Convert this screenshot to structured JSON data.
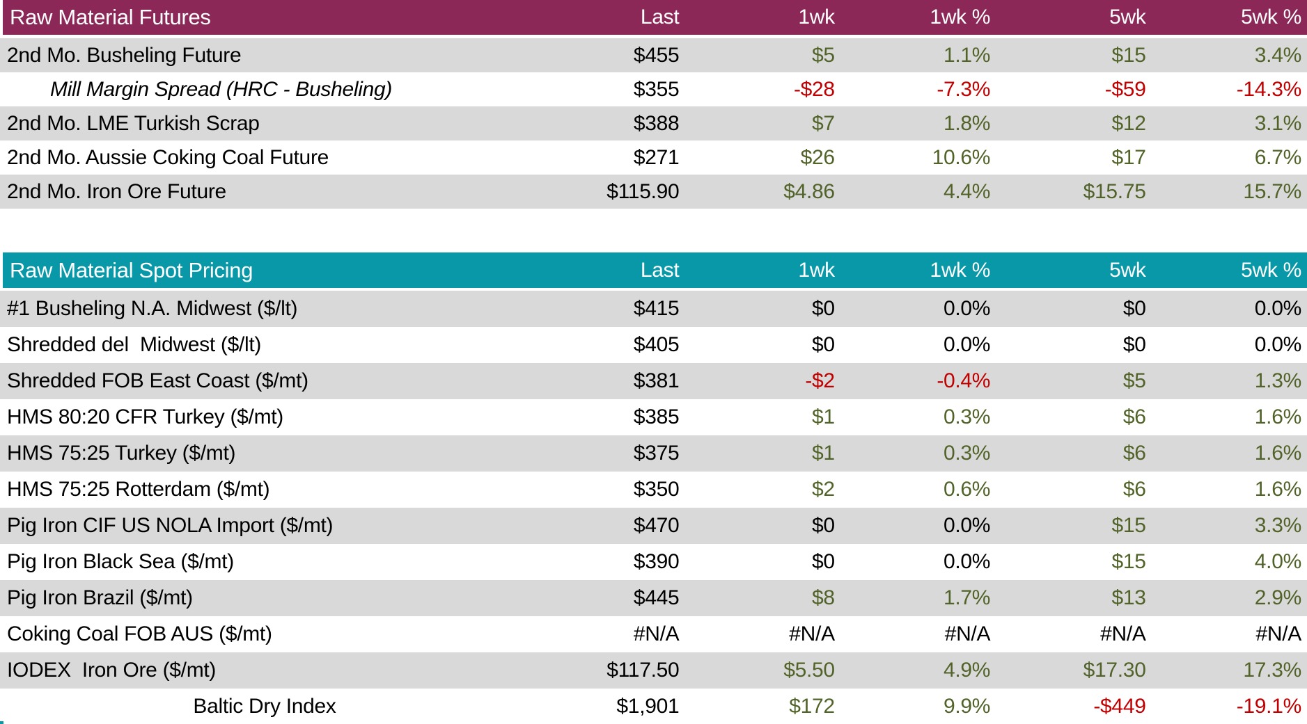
{
  "colors": {
    "futures_header_bg": "#8C2858",
    "spot_header_bg": "#0998A8",
    "stripe_gray": "#D9D9D9",
    "positive_green": "#52632A",
    "negative_red": "#C00000",
    "neutral_black": "#000000",
    "header_text": "#FFFFFF"
  },
  "chart_data": [
    {
      "type": "table",
      "title": "Raw Material Futures",
      "header_color": "#8C2858",
      "columns": [
        "Last",
        "1wk",
        "1wk %",
        "5wk",
        "5wk %"
      ],
      "rows": [
        {
          "label": "2nd Mo. Busheling Future",
          "cells": [
            {
              "t": "$455",
              "c": "flat"
            },
            {
              "t": "$5",
              "c": "pos"
            },
            {
              "t": "1.1%",
              "c": "pos"
            },
            {
              "t": "$15",
              "c": "pos"
            },
            {
              "t": "3.4%",
              "c": "pos"
            }
          ]
        },
        {
          "label": "Mill Margin Spread (HRC - Busheling)",
          "em": true,
          "cells": [
            {
              "t": "$355",
              "c": "flat"
            },
            {
              "t": "-$28",
              "c": "neg"
            },
            {
              "t": "-7.3%",
              "c": "neg"
            },
            {
              "t": "-$59",
              "c": "neg"
            },
            {
              "t": "-14.3%",
              "c": "neg"
            }
          ]
        },
        {
          "label": "2nd Mo. LME Turkish Scrap",
          "cells": [
            {
              "t": "$388",
              "c": "flat"
            },
            {
              "t": "$7",
              "c": "pos"
            },
            {
              "t": "1.8%",
              "c": "pos"
            },
            {
              "t": "$12",
              "c": "pos"
            },
            {
              "t": "3.1%",
              "c": "pos"
            }
          ]
        },
        {
          "label": "2nd Mo. Aussie Coking Coal Future",
          "cells": [
            {
              "t": "$271",
              "c": "flat"
            },
            {
              "t": "$26",
              "c": "pos"
            },
            {
              "t": "10.6%",
              "c": "pos"
            },
            {
              "t": "$17",
              "c": "pos"
            },
            {
              "t": "6.7%",
              "c": "pos"
            }
          ]
        },
        {
          "label": "2nd Mo. Iron Ore Future",
          "cells": [
            {
              "t": "$115.90",
              "c": "flat"
            },
            {
              "t": "$4.86",
              "c": "pos"
            },
            {
              "t": "4.4%",
              "c": "pos"
            },
            {
              "t": "$15.75",
              "c": "pos"
            },
            {
              "t": "15.7%",
              "c": "pos"
            }
          ]
        }
      ]
    },
    {
      "type": "table",
      "title": "Raw Material Spot Pricing",
      "header_color": "#0998A8",
      "columns": [
        "Last",
        "1wk",
        "1wk %",
        "5wk",
        "5wk %"
      ],
      "rows": [
        {
          "label": "#1 Busheling N.A. Midwest ($/lt)",
          "cells": [
            {
              "t": "$415",
              "c": "flat"
            },
            {
              "t": "$0",
              "c": "flat"
            },
            {
              "t": "0.0%",
              "c": "flat"
            },
            {
              "t": "$0",
              "c": "flat"
            },
            {
              "t": "0.0%",
              "c": "flat"
            }
          ]
        },
        {
          "label": "Shredded del  Midwest ($/lt)",
          "cells": [
            {
              "t": "$405",
              "c": "flat"
            },
            {
              "t": "$0",
              "c": "flat"
            },
            {
              "t": "0.0%",
              "c": "flat"
            },
            {
              "t": "$0",
              "c": "flat"
            },
            {
              "t": "0.0%",
              "c": "flat"
            }
          ]
        },
        {
          "label": "Shredded FOB East Coast ($/mt)",
          "cells": [
            {
              "t": "$381",
              "c": "flat"
            },
            {
              "t": "-$2",
              "c": "neg"
            },
            {
              "t": "-0.4%",
              "c": "neg"
            },
            {
              "t": "$5",
              "c": "pos"
            },
            {
              "t": "1.3%",
              "c": "pos"
            }
          ]
        },
        {
          "label": "HMS 80:20 CFR Turkey ($/mt)",
          "cells": [
            {
              "t": "$385",
              "c": "flat"
            },
            {
              "t": "$1",
              "c": "pos"
            },
            {
              "t": "0.3%",
              "c": "pos"
            },
            {
              "t": "$6",
              "c": "pos"
            },
            {
              "t": "1.6%",
              "c": "pos"
            }
          ]
        },
        {
          "label": "HMS 75:25 Turkey ($/mt)",
          "cells": [
            {
              "t": "$375",
              "c": "flat"
            },
            {
              "t": "$1",
              "c": "pos"
            },
            {
              "t": "0.3%",
              "c": "pos"
            },
            {
              "t": "$6",
              "c": "pos"
            },
            {
              "t": "1.6%",
              "c": "pos"
            }
          ]
        },
        {
          "label": "HMS 75:25 Rotterdam ($/mt)",
          "cells": [
            {
              "t": "$350",
              "c": "flat"
            },
            {
              "t": "$2",
              "c": "pos"
            },
            {
              "t": "0.6%",
              "c": "pos"
            },
            {
              "t": "$6",
              "c": "pos"
            },
            {
              "t": "1.6%",
              "c": "pos"
            }
          ]
        },
        {
          "label": "Pig Iron CIF US NOLA Import ($/mt)",
          "cells": [
            {
              "t": "$470",
              "c": "flat"
            },
            {
              "t": "$0",
              "c": "flat"
            },
            {
              "t": "0.0%",
              "c": "flat"
            },
            {
              "t": "$15",
              "c": "pos"
            },
            {
              "t": "3.3%",
              "c": "pos"
            }
          ]
        },
        {
          "label": "Pig Iron Black Sea ($/mt)",
          "cells": [
            {
              "t": "$390",
              "c": "flat"
            },
            {
              "t": "$0",
              "c": "flat"
            },
            {
              "t": "0.0%",
              "c": "flat"
            },
            {
              "t": "$15",
              "c": "pos"
            },
            {
              "t": "4.0%",
              "c": "pos"
            }
          ]
        },
        {
          "label": "Pig Iron Brazil ($/mt)",
          "cells": [
            {
              "t": "$445",
              "c": "flat"
            },
            {
              "t": "$8",
              "c": "pos"
            },
            {
              "t": "1.7%",
              "c": "pos"
            },
            {
              "t": "$13",
              "c": "pos"
            },
            {
              "t": "2.9%",
              "c": "pos"
            }
          ]
        },
        {
          "label": "Coking Coal FOB AUS ($/mt)",
          "cells": [
            {
              "t": "#N/A",
              "c": "flat"
            },
            {
              "t": "#N/A",
              "c": "flat"
            },
            {
              "t": "#N/A",
              "c": "flat"
            },
            {
              "t": "#N/A",
              "c": "flat"
            },
            {
              "t": "#N/A",
              "c": "flat"
            }
          ]
        },
        {
          "label": "IODEX  Iron Ore ($/mt)",
          "cells": [
            {
              "t": "$117.50",
              "c": "flat"
            },
            {
              "t": "$5.50",
              "c": "pos"
            },
            {
              "t": "4.9%",
              "c": "pos"
            },
            {
              "t": "$17.30",
              "c": "pos"
            },
            {
              "t": "17.3%",
              "c": "pos"
            }
          ]
        },
        {
          "label": "Baltic Dry Index",
          "center": true,
          "cells": [
            {
              "t": "$1,901",
              "c": "flat"
            },
            {
              "t": "$172",
              "c": "pos"
            },
            {
              "t": "9.9%",
              "c": "pos"
            },
            {
              "t": "-$449",
              "c": "neg"
            },
            {
              "t": "-19.1%",
              "c": "neg"
            }
          ]
        }
      ]
    }
  ]
}
